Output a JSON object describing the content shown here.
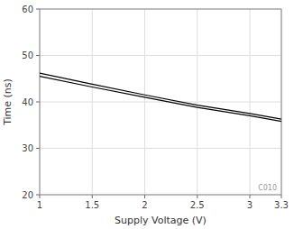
{
  "chart_data": {
    "type": "line",
    "xlabel": "Supply Voltage (V)",
    "ylabel": "Time (ns)",
    "x": [
      1.0,
      1.5,
      2.0,
      2.5,
      3.0,
      3.3
    ],
    "series": [
      {
        "color": "#000000",
        "values": [
          45.5,
          43.2,
          41.0,
          38.8,
          37.0,
          35.8
        ]
      },
      {
        "color": "#000000",
        "values": [
          46.2,
          43.8,
          41.5,
          39.3,
          37.5,
          36.3
        ]
      }
    ],
    "xlim": [
      1,
      3.3
    ],
    "ylim": [
      20,
      60
    ],
    "xticks": [
      1,
      1.5,
      2,
      2.5,
      3,
      3.3
    ],
    "yticks": [
      20,
      30,
      40,
      50,
      60
    ],
    "grid": true,
    "annotations": [
      "C010"
    ]
  }
}
